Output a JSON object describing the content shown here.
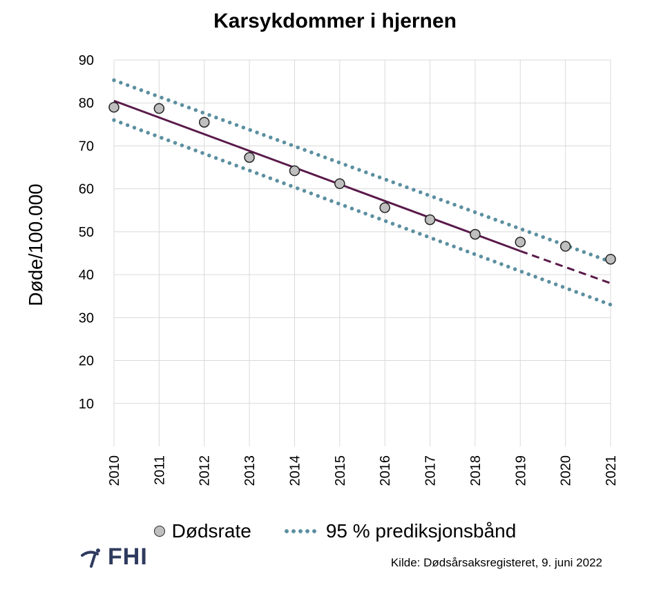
{
  "chart_data": {
    "type": "scatter",
    "title": "Karsykdommer i hjernen",
    "ylabel": "Døde/100.000",
    "xlabel": "",
    "x": [
      2010,
      2011,
      2012,
      2013,
      2014,
      2015,
      2016,
      2017,
      2018,
      2019,
      2020,
      2021
    ],
    "x_tick_labels": [
      "2010",
      "2011",
      "2012",
      "2013",
      "2014",
      "2015",
      "2016",
      "2017",
      "2018",
      "2019",
      "2020",
      "2021"
    ],
    "ylim": [
      0,
      90
    ],
    "y_ticks": [
      10,
      20,
      30,
      40,
      50,
      60,
      70,
      80,
      90
    ],
    "grid": true,
    "legend_placement": "bottom",
    "series": [
      {
        "name": "Dødsrate",
        "kind": "points",
        "color": "#bfbfbf",
        "x": [
          2010,
          2011,
          2012,
          2013,
          2014,
          2015,
          2016,
          2017,
          2018,
          2019,
          2020,
          2021
        ],
        "values": [
          79.0,
          78.7,
          75.5,
          67.3,
          64.2,
          61.2,
          55.6,
          52.8,
          49.4,
          47.6,
          46.6,
          43.6
        ]
      },
      {
        "kind": "trend",
        "color": "#5a1a4a",
        "solid_x": [
          2010,
          2019
        ],
        "solid_values": [
          80.5,
          45.5
        ],
        "dashed_x": [
          2019,
          2021
        ],
        "dashed_values": [
          45.5,
          38.0
        ]
      },
      {
        "name": "95 % prediksjonsbånd",
        "kind": "band",
        "color": "#5b8fa0",
        "upper_x": [
          2010,
          2021
        ],
        "upper_values": [
          85.3,
          43.0
        ],
        "lower_x": [
          2010,
          2021
        ],
        "lower_values": [
          76.0,
          33.0
        ]
      }
    ]
  },
  "legend": {
    "points_label": "Dødsrate",
    "band_label": "95 % prediksjonsbånd"
  },
  "logo": {
    "text": "FHI"
  },
  "source": "Kilde: Dødsårsaksregisteret, 9. juni 2022"
}
